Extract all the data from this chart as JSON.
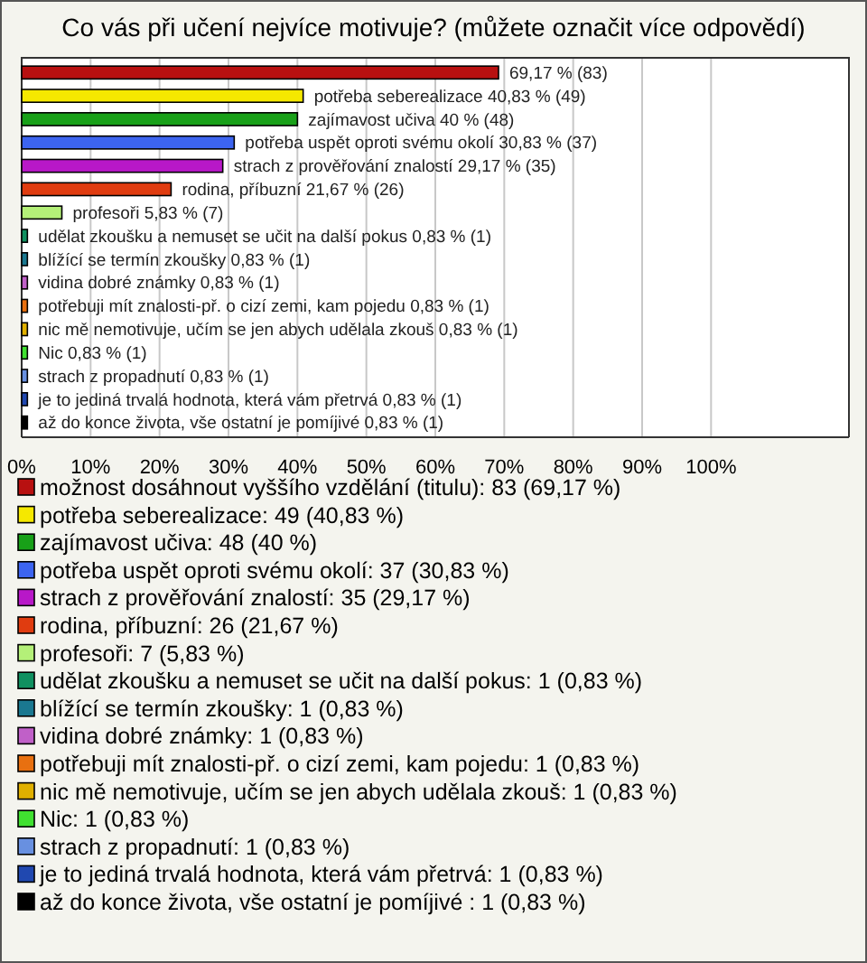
{
  "chart_data": {
    "type": "bar",
    "orientation": "horizontal",
    "stacked": true,
    "title": "Co vás při učení nejvíce motivuje? (můžete označit více odpovědí)",
    "categories": [
      null,
      null,
      null,
      null,
      null,
      null,
      null,
      null,
      null,
      null,
      null,
      null,
      null,
      null,
      null,
      null
    ],
    "series": [
      {
        "name": "možnost dosáhnout vyššího vzdělání (titulu): 83 (69,17 %)",
        "color": "#b81010",
        "values": [
          69.17,
          null,
          null,
          null,
          null,
          null,
          null,
          null,
          null,
          null,
          null,
          null,
          null,
          null,
          null,
          null
        ],
        "value_labels": [
          "69,17 % (83)",
          null,
          null,
          null,
          null,
          null,
          null,
          null,
          null,
          null,
          null,
          null,
          null,
          null,
          null,
          null
        ]
      },
      {
        "name": "potřeba seberealizace: 49 (40,83 %)",
        "color": "#f5e800",
        "values": [
          null,
          40.83,
          null,
          null,
          null,
          null,
          null,
          null,
          null,
          null,
          null,
          null,
          null,
          null,
          null,
          null
        ],
        "value_labels": [
          null,
          "potřeba seberealizace 40,83 % (49)",
          null,
          null,
          null,
          null,
          null,
          null,
          null,
          null,
          null,
          null,
          null,
          null,
          null,
          null
        ]
      },
      {
        "name": "zajímavost učiva: 48 (40 %)",
        "color": "#18a018",
        "values": [
          null,
          null,
          40,
          null,
          null,
          null,
          null,
          null,
          null,
          null,
          null,
          null,
          null,
          null,
          null,
          null
        ],
        "value_labels": [
          null,
          null,
          "zajímavost učiva 40 % (48)",
          null,
          null,
          null,
          null,
          null,
          null,
          null,
          null,
          null,
          null,
          null,
          null,
          null
        ]
      },
      {
        "name": "potřeba uspět oproti svému okolí: 37 (30,83 %)",
        "color": "#3c64f0",
        "values": [
          null,
          null,
          null,
          30.83,
          null,
          null,
          null,
          null,
          null,
          null,
          null,
          null,
          null,
          null,
          null,
          null
        ],
        "value_labels": [
          null,
          null,
          null,
          "potřeba uspět oproti svému okolí 30,83 % (37)",
          null,
          null,
          null,
          null,
          null,
          null,
          null,
          null,
          null,
          null,
          null,
          null
        ]
      },
      {
        "name": "strach z prověřování znalostí: 35 (29,17 %)",
        "color": "#b818c8",
        "values": [
          null,
          null,
          null,
          null,
          29.17,
          null,
          null,
          null,
          null,
          null,
          null,
          null,
          null,
          null,
          null,
          null
        ],
        "value_labels": [
          null,
          null,
          null,
          null,
          "strach z prověřování znalostí 29,17 % (35)",
          null,
          null,
          null,
          null,
          null,
          null,
          null,
          null,
          null,
          null,
          null
        ]
      },
      {
        "name": "rodina, příbuzní: 26 (21,67 %)",
        "color": "#e03c10",
        "values": [
          null,
          null,
          null,
          null,
          null,
          21.67,
          null,
          null,
          null,
          null,
          null,
          null,
          null,
          null,
          null,
          null
        ],
        "value_labels": [
          null,
          null,
          null,
          null,
          null,
          "rodina, příbuzní 21,67 % (26)",
          null,
          null,
          null,
          null,
          null,
          null,
          null,
          null,
          null,
          null
        ]
      },
      {
        "name": "profesoři: 7 (5,83 %)",
        "color": "#b4f078",
        "values": [
          null,
          null,
          null,
          null,
          null,
          null,
          5.83,
          null,
          null,
          null,
          null,
          null,
          null,
          null,
          null,
          null
        ],
        "value_labels": [
          null,
          null,
          null,
          null,
          null,
          null,
          "profesoři 5,83 % (7)",
          null,
          null,
          null,
          null,
          null,
          null,
          null,
          null,
          null
        ]
      },
      {
        "name": "udělat zkoušku a nemuset se učit na další pokus: 1 (0,83 %)",
        "color": "#109060",
        "values": [
          null,
          null,
          null,
          null,
          null,
          null,
          null,
          0.83,
          null,
          null,
          null,
          null,
          null,
          null,
          null,
          null
        ],
        "value_labels": [
          null,
          null,
          null,
          null,
          null,
          null,
          null,
          "udělat zkoušku a nemuset se učit na další pokus 0,83 % (1)",
          null,
          null,
          null,
          null,
          null,
          null,
          null,
          null
        ]
      },
      {
        "name": "blížící se termín zkoušky: 1 (0,83 %)",
        "color": "#1a7890",
        "values": [
          null,
          null,
          null,
          null,
          null,
          null,
          null,
          null,
          0.83,
          null,
          null,
          null,
          null,
          null,
          null,
          null
        ],
        "value_labels": [
          null,
          null,
          null,
          null,
          null,
          null,
          null,
          null,
          "blížící se termín zkoušky 0,83 % (1)",
          null,
          null,
          null,
          null,
          null,
          null,
          null
        ]
      },
      {
        "name": "vidina dobré známky: 1 (0,83 %)",
        "color": "#c060c8",
        "values": [
          null,
          null,
          null,
          null,
          null,
          null,
          null,
          null,
          null,
          0.83,
          null,
          null,
          null,
          null,
          null,
          null
        ],
        "value_labels": [
          null,
          null,
          null,
          null,
          null,
          null,
          null,
          null,
          null,
          "vidina dobré známky 0,83 % (1)",
          null,
          null,
          null,
          null,
          null,
          null
        ]
      },
      {
        "name": "potřebuji mít znalosti-př. o cizí zemi, kam pojedu: 1 (0,83 %)",
        "color": "#e87010",
        "values": [
          null,
          null,
          null,
          null,
          null,
          null,
          null,
          null,
          null,
          null,
          0.83,
          null,
          null,
          null,
          null,
          null
        ],
        "value_labels": [
          null,
          null,
          null,
          null,
          null,
          null,
          null,
          null,
          null,
          null,
          "potřebuji mít znalosti-př. o cizí zemi, kam pojedu 0,83 % (1)",
          null,
          null,
          null,
          null,
          null
        ]
      },
      {
        "name": "nic mě nemotivuje, učím se jen abych udělala zkouš: 1 (0,83 %)",
        "color": "#e0b000",
        "values": [
          null,
          null,
          null,
          null,
          null,
          null,
          null,
          null,
          null,
          null,
          null,
          0.83,
          null,
          null,
          null,
          null
        ],
        "value_labels": [
          null,
          null,
          null,
          null,
          null,
          null,
          null,
          null,
          null,
          null,
          null,
          "nic mě nemotivuje, učím se jen abych udělala zkouš 0,83 % (1)",
          null,
          null,
          null,
          null
        ]
      },
      {
        "name": "Nic: 1 (0,83 %)",
        "color": "#40e030",
        "values": [
          null,
          null,
          null,
          null,
          null,
          null,
          null,
          null,
          null,
          null,
          null,
          null,
          0.83,
          null,
          null,
          null
        ],
        "value_labels": [
          null,
          null,
          null,
          null,
          null,
          null,
          null,
          null,
          null,
          null,
          null,
          null,
          "Nic 0,83 % (1)",
          null,
          null,
          null
        ]
      },
      {
        "name": "strach z propadnutí: 1 (0,83 %)",
        "color": "#6890e0",
        "values": [
          null,
          null,
          null,
          null,
          null,
          null,
          null,
          null,
          null,
          null,
          null,
          null,
          null,
          0.83,
          null,
          null
        ],
        "value_labels": [
          null,
          null,
          null,
          null,
          null,
          null,
          null,
          null,
          null,
          null,
          null,
          null,
          null,
          "strach z propadnutí 0,83 % (1)",
          null,
          null
        ]
      },
      {
        "name": "je to jediná trvalá hodnota, která vám přetrvá: 1 (0,83 %)",
        "color": "#2048b0",
        "values": [
          null,
          null,
          null,
          null,
          null,
          null,
          null,
          null,
          null,
          null,
          null,
          null,
          null,
          null,
          0.83,
          null
        ],
        "value_labels": [
          null,
          null,
          null,
          null,
          null,
          null,
          null,
          null,
          null,
          null,
          null,
          null,
          null,
          null,
          "je to jediná trvalá hodnota, která vám přetrvá 0,83 % (1)",
          null
        ]
      },
      {
        "name": "až do konce života, vše ostatní je pomíjivé : 1 (0,83 %)",
        "color": "#000000",
        "values": [
          null,
          null,
          null,
          null,
          null,
          null,
          null,
          null,
          null,
          null,
          null,
          null,
          null,
          null,
          null,
          0.83
        ],
        "value_labels": [
          null,
          null,
          null,
          null,
          null,
          null,
          null,
          null,
          null,
          null,
          null,
          null,
          null,
          null,
          null,
          "až do konce života, vše ostatní je pomíjivé  0,83 % (1)"
        ]
      }
    ],
    "xlim": [
      0,
      120
    ],
    "xticks": [
      {
        "value": 0,
        "label": "0%"
      },
      {
        "value": 10,
        "label": "10%"
      },
      {
        "value": 20,
        "label": "20%"
      },
      {
        "value": 30,
        "label": "30%"
      },
      {
        "value": 40,
        "label": "40%"
      },
      {
        "value": 50,
        "label": "50%"
      },
      {
        "value": 60,
        "label": "60%"
      },
      {
        "value": 70,
        "label": "70%"
      },
      {
        "value": 80,
        "label": "80%"
      },
      {
        "value": 90,
        "label": "90%"
      },
      {
        "value": 100,
        "label": "100%"
      }
    ],
    "grid": "x",
    "legend": "bottom",
    "tick_labels": "x"
  }
}
